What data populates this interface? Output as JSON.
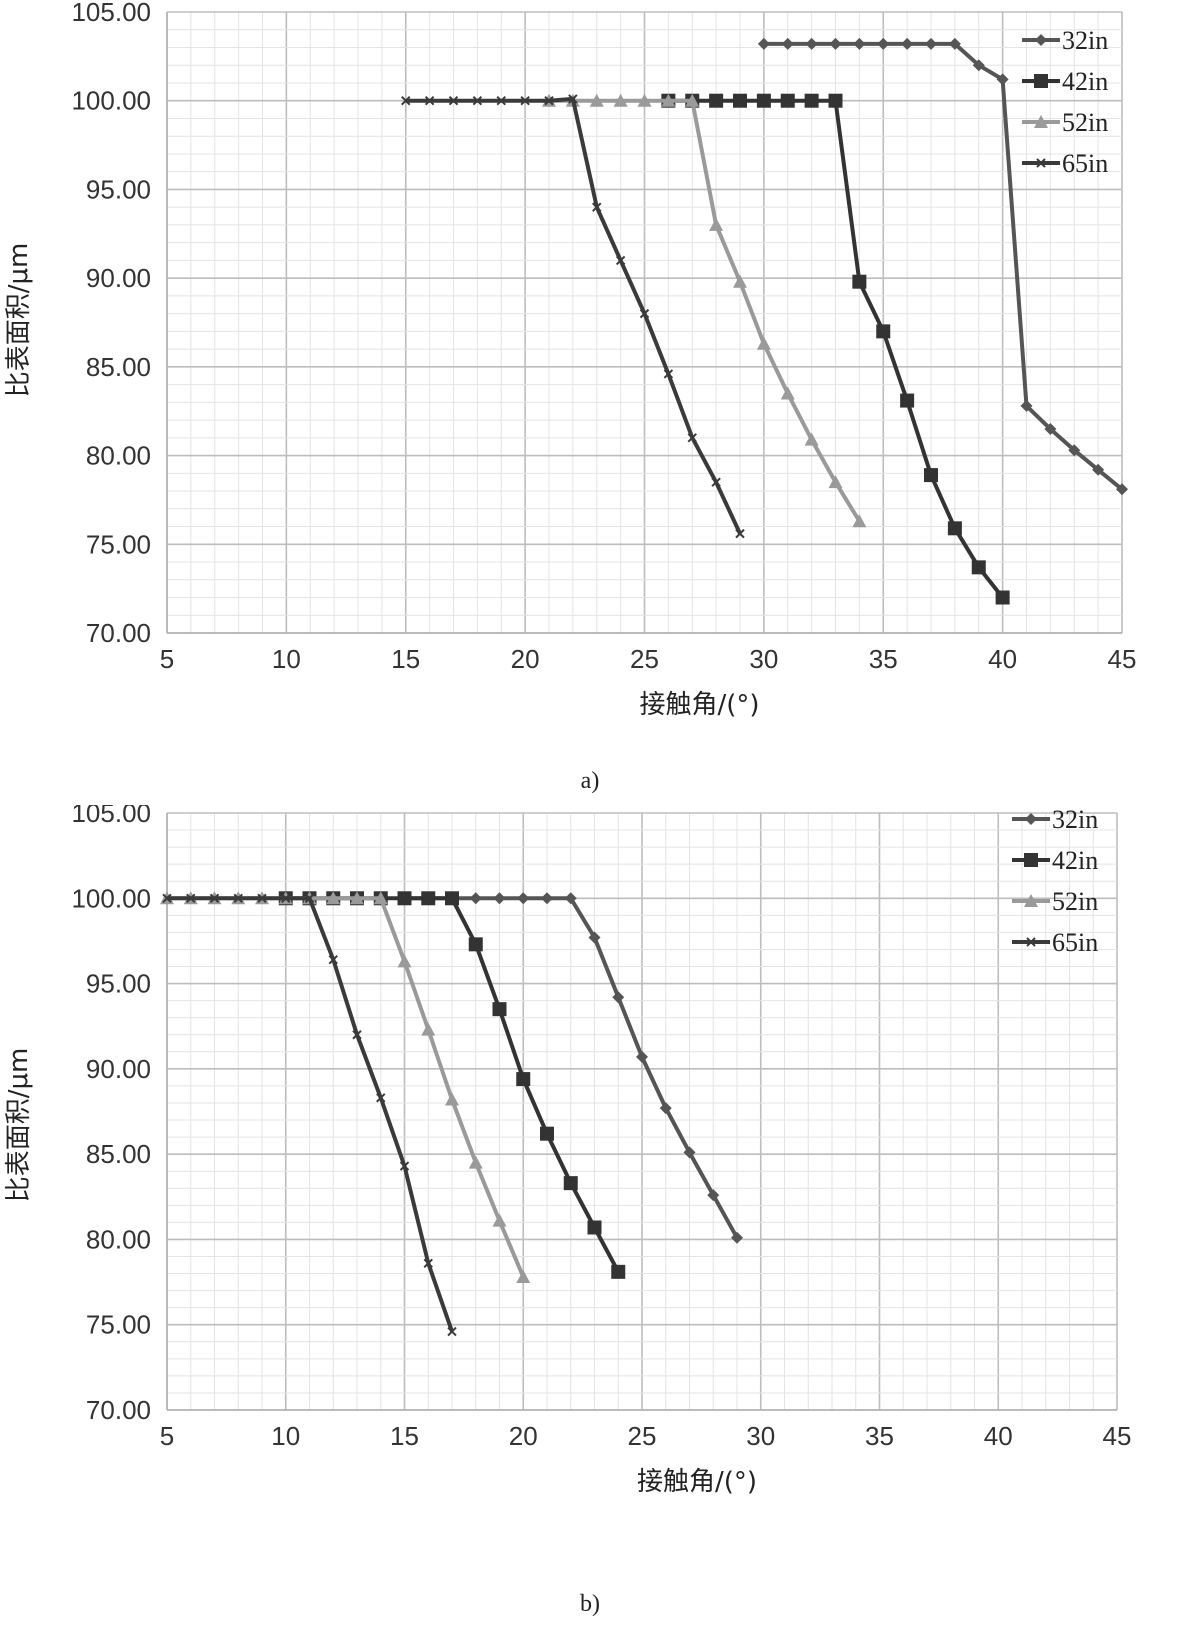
{
  "chart_data": [
    {
      "type": "line",
      "panel_label": "a)",
      "xlabel": "接触角/(°)",
      "ylabel": "比表面积/μm",
      "xlim": [
        5,
        45
      ],
      "ylim": [
        70,
        105
      ],
      "x_ticks": [
        "5",
        "10",
        "15",
        "20",
        "25",
        "30",
        "35",
        "40",
        "45"
      ],
      "y_ticks": [
        "70.00",
        "75.00",
        "80.00",
        "85.00",
        "90.00",
        "95.00",
        "100.00",
        "105.00"
      ],
      "grid": true,
      "legend_position": "top-right",
      "series": [
        {
          "name": "32in",
          "color": "#555555",
          "marker": "diamond",
          "points": [
            [
              30,
              103.2
            ],
            [
              31,
              103.2
            ],
            [
              32,
              103.2
            ],
            [
              33,
              103.2
            ],
            [
              34,
              103.2
            ],
            [
              35,
              103.2
            ],
            [
              36,
              103.2
            ],
            [
              37,
              103.2
            ],
            [
              38,
              103.2
            ],
            [
              39,
              102.0
            ],
            [
              40,
              101.2
            ],
            [
              41,
              82.8
            ],
            [
              42,
              81.5
            ],
            [
              43,
              80.3
            ],
            [
              44,
              79.2
            ],
            [
              45,
              78.1
            ]
          ]
        },
        {
          "name": "42in",
          "color": "#333333",
          "marker": "square",
          "points": [
            [
              26,
              100
            ],
            [
              27,
              100
            ],
            [
              28,
              100
            ],
            [
              29,
              100
            ],
            [
              30,
              100
            ],
            [
              31,
              100
            ],
            [
              32,
              100
            ],
            [
              33,
              100
            ],
            [
              34,
              89.8
            ],
            [
              35,
              87.0
            ],
            [
              36,
              83.1
            ],
            [
              37,
              78.9
            ],
            [
              38,
              75.9
            ],
            [
              39,
              73.7
            ],
            [
              40,
              72.0
            ]
          ]
        },
        {
          "name": "52in",
          "color": "#9a9a9a",
          "marker": "triangle",
          "points": [
            [
              21,
              100
            ],
            [
              22,
              100
            ],
            [
              23,
              100
            ],
            [
              24,
              100
            ],
            [
              25,
              100
            ],
            [
              26,
              100
            ],
            [
              27,
              100
            ],
            [
              28,
              93.0
            ],
            [
              29,
              89.8
            ],
            [
              30,
              86.3
            ],
            [
              31,
              83.5
            ],
            [
              32,
              80.9
            ],
            [
              33,
              78.5
            ],
            [
              34,
              76.3
            ]
          ]
        },
        {
          "name": "65in",
          "color": "#3a3a3a",
          "marker": "x",
          "points": [
            [
              15,
              100
            ],
            [
              16,
              100
            ],
            [
              17,
              100
            ],
            [
              18,
              100
            ],
            [
              19,
              100
            ],
            [
              20,
              100
            ],
            [
              21,
              100
            ],
            [
              22,
              100.1
            ],
            [
              23,
              94.0
            ],
            [
              24,
              91.0
            ],
            [
              25,
              88.0
            ],
            [
              26,
              84.6
            ],
            [
              27,
              81.0
            ],
            [
              28,
              78.5
            ],
            [
              29,
              75.6
            ]
          ]
        }
      ]
    },
    {
      "type": "line",
      "panel_label": "b)",
      "xlabel": "接触角/(°)",
      "ylabel": "比表面积/μm",
      "xlim": [
        5,
        45
      ],
      "ylim": [
        70,
        105
      ],
      "x_ticks": [
        "5",
        "10",
        "15",
        "20",
        "25",
        "30",
        "35",
        "40",
        "45"
      ],
      "y_ticks": [
        "70.00",
        "75.00",
        "80.00",
        "85.00",
        "90.00",
        "95.00",
        "100.00",
        "105.00"
      ],
      "grid": true,
      "legend_position": "top-right",
      "series": [
        {
          "name": "32in",
          "color": "#555555",
          "marker": "diamond",
          "points": [
            [
              15,
              100
            ],
            [
              16,
              100
            ],
            [
              17,
              100
            ],
            [
              18,
              100
            ],
            [
              19,
              100
            ],
            [
              20,
              100
            ],
            [
              21,
              100
            ],
            [
              22,
              100
            ],
            [
              23,
              97.7
            ],
            [
              24,
              94.2
            ],
            [
              25,
              90.7
            ],
            [
              26,
              87.7
            ],
            [
              27,
              85.1
            ],
            [
              28,
              82.6
            ],
            [
              29,
              80.1
            ]
          ]
        },
        {
          "name": "42in",
          "color": "#333333",
          "marker": "square",
          "points": [
            [
              10,
              100
            ],
            [
              11,
              100
            ],
            [
              12,
              100
            ],
            [
              13,
              100
            ],
            [
              14,
              100
            ],
            [
              15,
              100
            ],
            [
              16,
              100
            ],
            [
              17,
              100
            ],
            [
              18,
              97.3
            ],
            [
              19,
              93.5
            ],
            [
              20,
              89.4
            ],
            [
              21,
              86.2
            ],
            [
              22,
              83.3
            ],
            [
              23,
              80.7
            ],
            [
              24,
              78.1
            ]
          ]
        },
        {
          "name": "52in",
          "color": "#9a9a9a",
          "marker": "triangle",
          "points": [
            [
              5,
              100
            ],
            [
              6,
              100
            ],
            [
              7,
              100
            ],
            [
              8,
              100
            ],
            [
              9,
              100
            ],
            [
              10,
              100
            ],
            [
              11,
              100
            ],
            [
              12,
              100
            ],
            [
              13,
              100
            ],
            [
              14,
              100
            ],
            [
              15,
              96.3
            ],
            [
              16,
              92.3
            ],
            [
              17,
              88.2
            ],
            [
              18,
              84.5
            ],
            [
              19,
              81.1
            ],
            [
              20,
              77.8
            ]
          ]
        },
        {
          "name": "65in",
          "color": "#3a3a3a",
          "marker": "x",
          "points": [
            [
              5,
              100
            ],
            [
              6,
              100
            ],
            [
              7,
              100
            ],
            [
              8,
              100
            ],
            [
              9,
              100
            ],
            [
              10,
              100
            ],
            [
              11,
              100
            ],
            [
              12,
              96.4
            ],
            [
              13,
              92.0
            ],
            [
              14,
              88.3
            ],
            [
              15,
              84.3
            ],
            [
              16,
              78.6
            ],
            [
              17,
              74.6
            ]
          ]
        }
      ]
    }
  ]
}
